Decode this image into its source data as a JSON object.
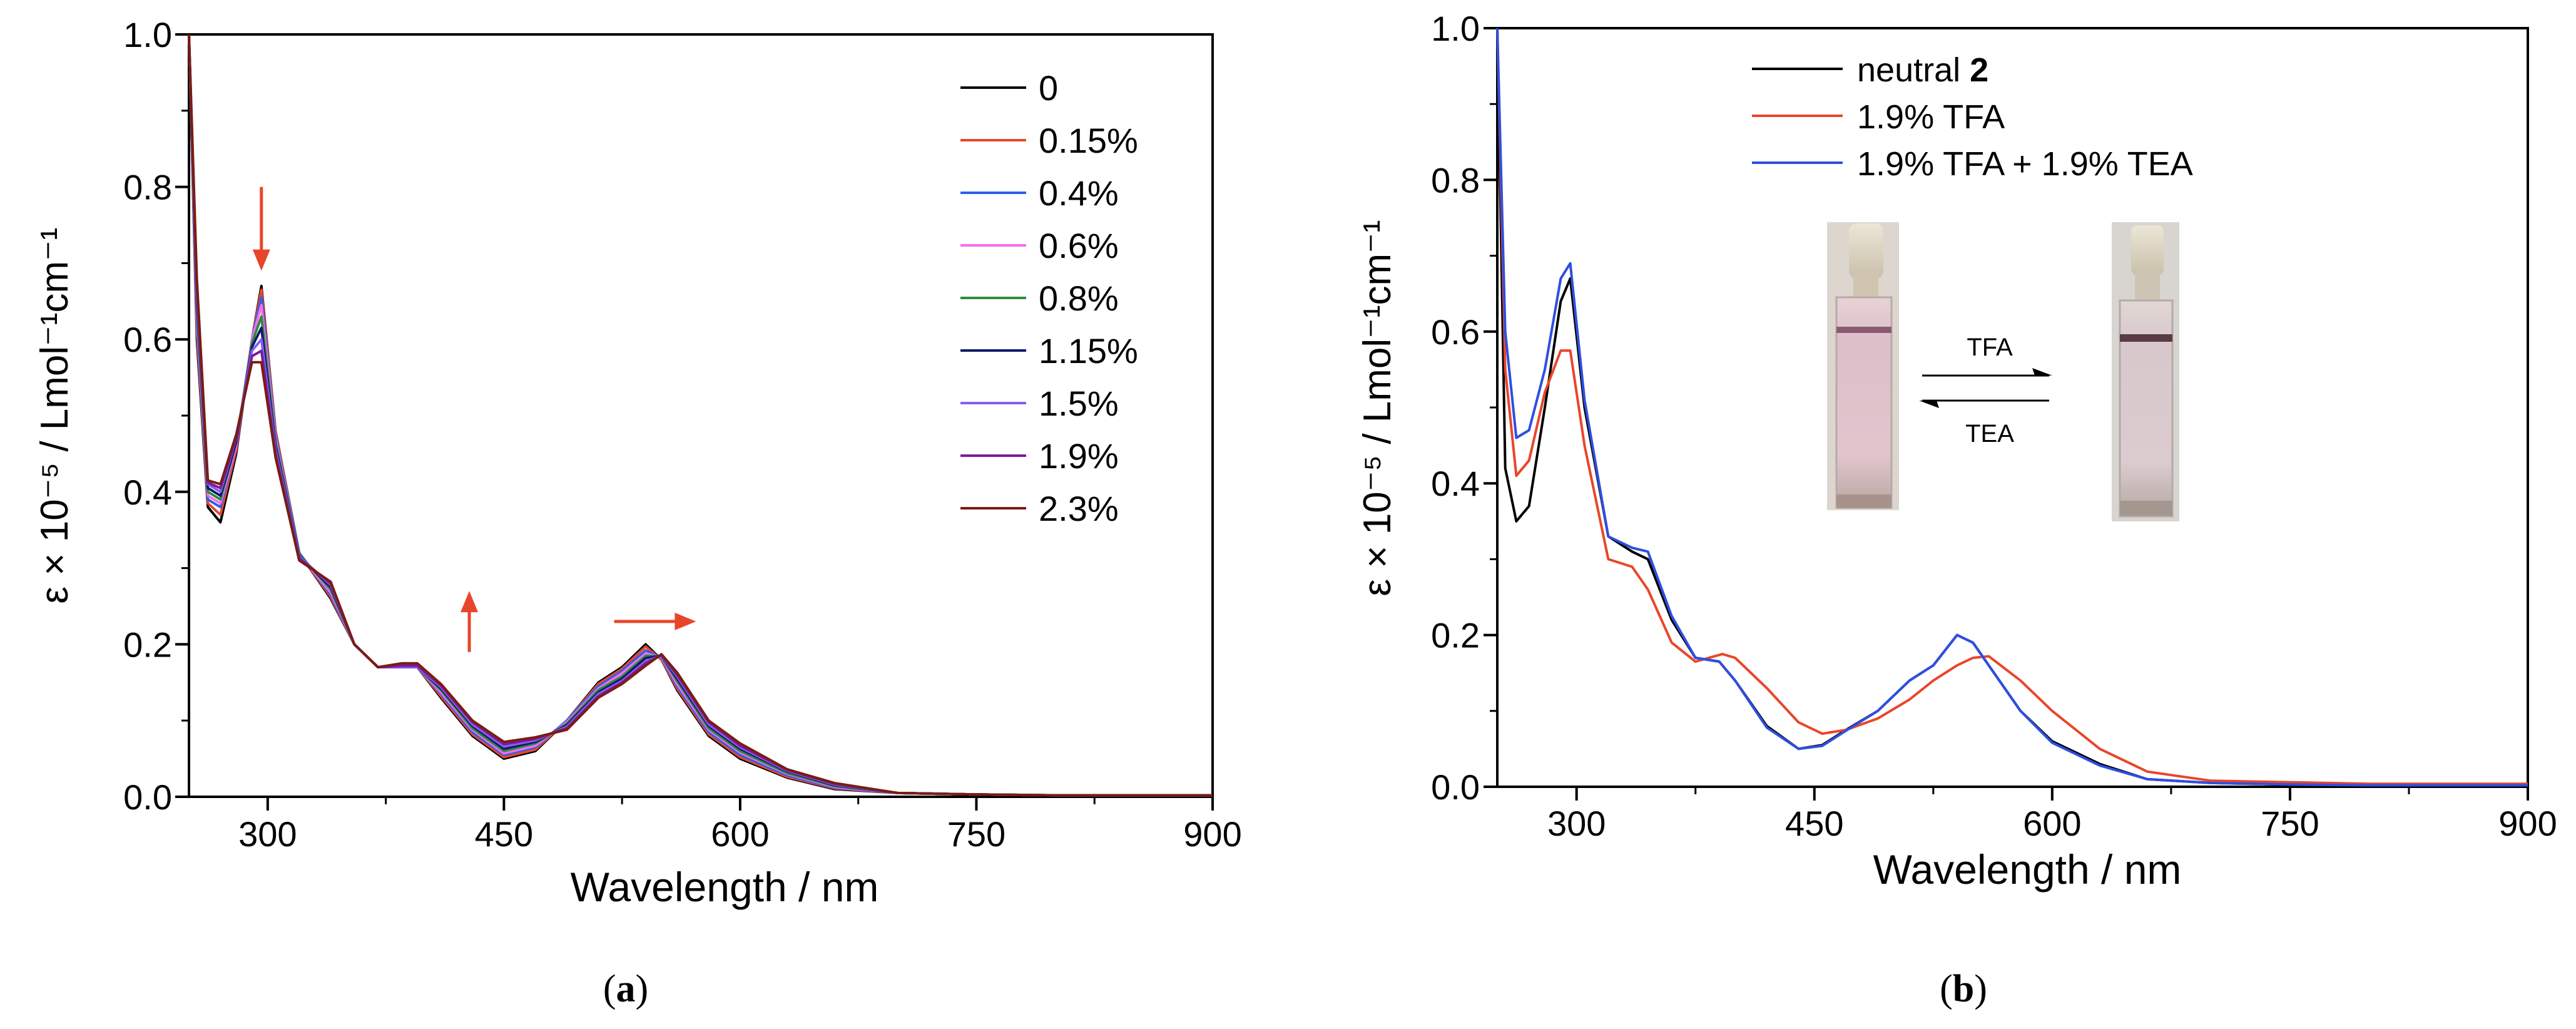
{
  "chart_data": [
    {
      "panel": "a",
      "type": "line",
      "caption": "a",
      "xlabel": "Wavelength / nm",
      "ylabel": "ε × 10⁻⁵ / Lmol⁻¹cm⁻¹",
      "xlim": [
        250,
        900
      ],
      "ylim": [
        0,
        1.0
      ],
      "xticks": [
        300,
        450,
        600,
        750,
        900
      ],
      "yticks": [
        0.0,
        0.2,
        0.4,
        0.6,
        0.8,
        1.0
      ],
      "xtick_labels": [
        "300",
        "450",
        "600",
        "750",
        "900"
      ],
      "ytick_labels": [
        "0.0",
        "0.2",
        "0.4",
        "0.6",
        "0.8",
        "1.0"
      ],
      "legend_position": "top-right",
      "series": [
        {
          "name": "0",
          "color": "#000000",
          "x": [
            250,
            255,
            262,
            270,
            280,
            290,
            296,
            305,
            320,
            340,
            355,
            370,
            385,
            395,
            410,
            430,
            450,
            470,
            490,
            510,
            525,
            540,
            550,
            560,
            580,
            600,
            630,
            660,
            700,
            750,
            800,
            850,
            900
          ],
          "y": [
            1.0,
            0.6,
            0.38,
            0.36,
            0.45,
            0.6,
            0.67,
            0.48,
            0.32,
            0.26,
            0.2,
            0.17,
            0.17,
            0.17,
            0.13,
            0.08,
            0.05,
            0.06,
            0.1,
            0.15,
            0.17,
            0.2,
            0.18,
            0.14,
            0.08,
            0.05,
            0.025,
            0.01,
            0.005,
            0.003,
            0.002,
            0.002,
            0.002
          ]
        },
        {
          "name": "0.15%",
          "color": "#e8462a",
          "x": [
            250,
            255,
            262,
            270,
            280,
            290,
            296,
            305,
            320,
            340,
            355,
            370,
            385,
            395,
            410,
            430,
            450,
            470,
            490,
            510,
            525,
            540,
            550,
            560,
            580,
            600,
            630,
            660,
            700,
            750,
            800,
            850,
            900
          ],
          "y": [
            1.0,
            0.61,
            0.385,
            0.37,
            0.455,
            0.6,
            0.665,
            0.48,
            0.32,
            0.262,
            0.2,
            0.17,
            0.17,
            0.17,
            0.132,
            0.082,
            0.052,
            0.062,
            0.1,
            0.148,
            0.168,
            0.197,
            0.18,
            0.142,
            0.082,
            0.052,
            0.026,
            0.011,
            0.005,
            0.003,
            0.002,
            0.002,
            0.002
          ]
        },
        {
          "name": "0.4%",
          "color": "#2f5ee8",
          "x": [
            250,
            255,
            262,
            270,
            280,
            290,
            296,
            305,
            320,
            340,
            355,
            370,
            385,
            395,
            410,
            430,
            450,
            470,
            490,
            510,
            525,
            540,
            550,
            560,
            580,
            600,
            630,
            660,
            700,
            750,
            800,
            850,
            900
          ],
          "y": [
            1.0,
            0.62,
            0.39,
            0.38,
            0.46,
            0.6,
            0.655,
            0.475,
            0.32,
            0.265,
            0.2,
            0.17,
            0.17,
            0.17,
            0.135,
            0.085,
            0.055,
            0.065,
            0.1,
            0.145,
            0.165,
            0.192,
            0.182,
            0.145,
            0.085,
            0.055,
            0.028,
            0.012,
            0.005,
            0.003,
            0.002,
            0.002,
            0.002
          ]
        },
        {
          "name": "0.6%",
          "color": "#f36df0",
          "x": [
            250,
            255,
            262,
            270,
            280,
            290,
            296,
            305,
            320,
            340,
            355,
            370,
            385,
            395,
            410,
            430,
            450,
            470,
            490,
            510,
            525,
            540,
            550,
            560,
            580,
            600,
            630,
            660,
            700,
            750,
            800,
            850,
            900
          ],
          "y": [
            1.0,
            0.63,
            0.395,
            0.385,
            0.46,
            0.6,
            0.645,
            0.47,
            0.318,
            0.268,
            0.2,
            0.17,
            0.17,
            0.17,
            0.137,
            0.088,
            0.057,
            0.067,
            0.098,
            0.142,
            0.162,
            0.188,
            0.183,
            0.148,
            0.088,
            0.058,
            0.03,
            0.013,
            0.005,
            0.003,
            0.002,
            0.002,
            0.002
          ]
        },
        {
          "name": "0.8%",
          "color": "#2e8b3c",
          "x": [
            250,
            255,
            262,
            270,
            280,
            290,
            296,
            305,
            320,
            340,
            355,
            370,
            385,
            395,
            410,
            430,
            450,
            470,
            490,
            510,
            525,
            540,
            550,
            560,
            580,
            600,
            630,
            660,
            700,
            750,
            800,
            850,
            900
          ],
          "y": [
            1.0,
            0.64,
            0.4,
            0.39,
            0.465,
            0.595,
            0.63,
            0.465,
            0.318,
            0.272,
            0.2,
            0.17,
            0.17,
            0.17,
            0.14,
            0.09,
            0.06,
            0.07,
            0.096,
            0.14,
            0.158,
            0.185,
            0.184,
            0.152,
            0.09,
            0.06,
            0.031,
            0.014,
            0.005,
            0.003,
            0.002,
            0.002,
            0.002
          ]
        },
        {
          "name": "1.15%",
          "color": "#0d1a6b",
          "x": [
            250,
            255,
            262,
            270,
            280,
            290,
            296,
            305,
            320,
            340,
            355,
            370,
            385,
            395,
            410,
            430,
            450,
            470,
            490,
            510,
            525,
            540,
            550,
            560,
            580,
            600,
            630,
            660,
            700,
            750,
            800,
            850,
            900
          ],
          "y": [
            1.0,
            0.65,
            0.405,
            0.395,
            0.465,
            0.59,
            0.615,
            0.46,
            0.316,
            0.275,
            0.2,
            0.17,
            0.17,
            0.17,
            0.142,
            0.093,
            0.063,
            0.072,
            0.094,
            0.137,
            0.155,
            0.182,
            0.185,
            0.155,
            0.093,
            0.063,
            0.033,
            0.015,
            0.005,
            0.003,
            0.002,
            0.002,
            0.002
          ]
        },
        {
          "name": "1.5%",
          "color": "#8a5cf0",
          "x": [
            250,
            255,
            262,
            270,
            280,
            290,
            296,
            305,
            320,
            340,
            355,
            370,
            385,
            395,
            410,
            430,
            450,
            470,
            490,
            510,
            525,
            540,
            550,
            560,
            580,
            600,
            630,
            660,
            700,
            750,
            800,
            850,
            900
          ],
          "y": [
            1.0,
            0.66,
            0.41,
            0.4,
            0.47,
            0.585,
            0.6,
            0.455,
            0.315,
            0.278,
            0.2,
            0.17,
            0.17,
            0.17,
            0.144,
            0.095,
            0.066,
            0.074,
            0.092,
            0.135,
            0.152,
            0.178,
            0.185,
            0.158,
            0.095,
            0.065,
            0.034,
            0.016,
            0.005,
            0.003,
            0.002,
            0.002,
            0.002
          ]
        },
        {
          "name": "1.9%",
          "color": "#7a1a9a",
          "x": [
            250,
            255,
            262,
            270,
            280,
            290,
            296,
            305,
            320,
            340,
            355,
            370,
            385,
            395,
            410,
            430,
            450,
            470,
            490,
            510,
            525,
            540,
            550,
            560,
            580,
            600,
            630,
            660,
            700,
            750,
            800,
            850,
            900
          ],
          "y": [
            1.0,
            0.67,
            0.412,
            0.405,
            0.47,
            0.578,
            0.585,
            0.45,
            0.313,
            0.28,
            0.2,
            0.17,
            0.172,
            0.172,
            0.146,
            0.098,
            0.069,
            0.076,
            0.09,
            0.132,
            0.15,
            0.175,
            0.186,
            0.16,
            0.098,
            0.067,
            0.035,
            0.017,
            0.005,
            0.003,
            0.002,
            0.002,
            0.002
          ]
        },
        {
          "name": "2.3%",
          "color": "#7a1c12",
          "x": [
            250,
            255,
            262,
            270,
            280,
            290,
            296,
            305,
            320,
            340,
            355,
            370,
            385,
            395,
            410,
            430,
            450,
            470,
            490,
            510,
            525,
            540,
            550,
            560,
            580,
            600,
            630,
            660,
            700,
            750,
            800,
            850,
            900
          ],
          "y": [
            1.0,
            0.68,
            0.415,
            0.41,
            0.475,
            0.57,
            0.57,
            0.445,
            0.31,
            0.282,
            0.2,
            0.17,
            0.175,
            0.175,
            0.148,
            0.1,
            0.072,
            0.078,
            0.088,
            0.13,
            0.148,
            0.172,
            0.187,
            0.163,
            0.1,
            0.07,
            0.036,
            0.018,
            0.005,
            0.003,
            0.002,
            0.002,
            0.002
          ]
        }
      ],
      "annotations": [
        {
          "type": "arrow",
          "direction": "down",
          "x": 296,
          "y_from": 0.8,
          "y_to": 0.69,
          "color": "#e8462a"
        },
        {
          "type": "arrow",
          "direction": "up",
          "x": 428,
          "y_from": 0.19,
          "y_to": 0.27,
          "color": "#e8462a"
        },
        {
          "type": "arrow",
          "direction": "right",
          "x_from": 520,
          "x_to": 572,
          "y": 0.23,
          "color": "#e8462a"
        }
      ]
    },
    {
      "panel": "b",
      "type": "line",
      "caption": "b",
      "xlabel": "Wavelength / nm",
      "ylabel": "ε × 10⁻⁵ / Lmol⁻¹cm⁻¹",
      "xlim": [
        250,
        900
      ],
      "ylim": [
        0,
        1.0
      ],
      "xticks": [
        300,
        450,
        600,
        750,
        900
      ],
      "yticks": [
        0.0,
        0.2,
        0.4,
        0.6,
        0.8,
        1.0
      ],
      "xtick_labels": [
        "300",
        "450",
        "600",
        "750",
        "900"
      ],
      "ytick_labels": [
        "0.0",
        "0.2",
        "0.4",
        "0.6",
        "0.8",
        "1.0"
      ],
      "legend_position": "top-left",
      "series": [
        {
          "name": "neutral 2",
          "label_text": "neutral ",
          "label_bold": "2",
          "color": "#000000",
          "x": [
            250,
            255,
            262,
            270,
            280,
            290,
            296,
            305,
            320,
            335,
            345,
            360,
            375,
            390,
            400,
            420,
            440,
            455,
            470,
            490,
            510,
            525,
            540,
            550,
            560,
            580,
            600,
            630,
            660,
            700,
            750,
            800,
            850,
            900
          ],
          "y": [
            1.0,
            0.42,
            0.35,
            0.37,
            0.5,
            0.64,
            0.67,
            0.5,
            0.33,
            0.31,
            0.3,
            0.22,
            0.17,
            0.165,
            0.14,
            0.08,
            0.05,
            0.055,
            0.075,
            0.1,
            0.14,
            0.16,
            0.2,
            0.19,
            0.16,
            0.1,
            0.06,
            0.03,
            0.01,
            0.005,
            0.003,
            0.002,
            0.002,
            0.002
          ]
        },
        {
          "name": "1.9% TFA",
          "label_text": "1.9% TFA",
          "color": "#e8462a",
          "x": [
            250,
            255,
            262,
            270,
            280,
            290,
            296,
            305,
            320,
            335,
            345,
            360,
            375,
            392,
            400,
            420,
            440,
            455,
            470,
            490,
            510,
            525,
            540,
            550,
            560,
            580,
            600,
            630,
            660,
            700,
            750,
            800,
            850,
            900
          ],
          "y": [
            1.0,
            0.55,
            0.41,
            0.43,
            0.52,
            0.575,
            0.575,
            0.45,
            0.3,
            0.29,
            0.26,
            0.19,
            0.165,
            0.175,
            0.17,
            0.13,
            0.085,
            0.07,
            0.075,
            0.09,
            0.115,
            0.14,
            0.16,
            0.17,
            0.172,
            0.14,
            0.1,
            0.05,
            0.02,
            0.008,
            0.006,
            0.004,
            0.004,
            0.004
          ]
        },
        {
          "name": "1.9% TFA + 1.9% TEA",
          "label_text": "1.9% TFA + 1.9% TEA",
          "color": "#2f4fe0",
          "x": [
            250,
            255,
            262,
            270,
            280,
            290,
            296,
            305,
            320,
            335,
            345,
            360,
            375,
            390,
            400,
            420,
            440,
            455,
            470,
            490,
            510,
            525,
            540,
            550,
            560,
            580,
            600,
            630,
            660,
            700,
            750,
            800,
            850,
            900
          ],
          "y": [
            1.0,
            0.6,
            0.46,
            0.47,
            0.55,
            0.67,
            0.69,
            0.51,
            0.33,
            0.315,
            0.31,
            0.225,
            0.17,
            0.165,
            0.14,
            0.078,
            0.05,
            0.054,
            0.074,
            0.1,
            0.14,
            0.16,
            0.2,
            0.19,
            0.16,
            0.1,
            0.058,
            0.028,
            0.01,
            0.005,
            0.003,
            0.002,
            0.002,
            0.002
          ]
        }
      ],
      "inset": {
        "label_forward": "TFA",
        "label_reverse": "TEA"
      }
    }
  ]
}
